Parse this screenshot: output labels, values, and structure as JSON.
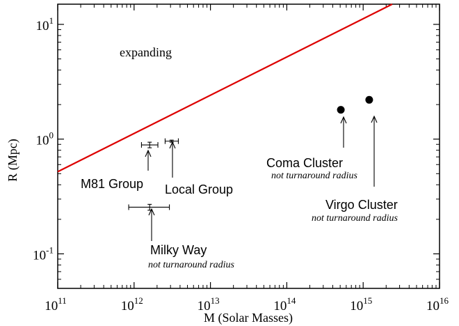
{
  "chart_data": {
    "type": "scatter",
    "xlabel": "M (Solar Masses)",
    "ylabel": "R (Mpc)",
    "x_scale": "log",
    "y_scale": "log",
    "xlim": [
      100000000000.0,
      1e+16
    ],
    "ylim": [
      0.05,
      15
    ],
    "x_ticks": [
      {
        "base": "10",
        "exp": "11"
      },
      {
        "base": "10",
        "exp": "12"
      },
      {
        "base": "10",
        "exp": "13"
      },
      {
        "base": "10",
        "exp": "14"
      },
      {
        "base": "10",
        "exp": "15"
      },
      {
        "base": "10",
        "exp": "16"
      }
    ],
    "y_ticks": [
      {
        "value": 0.1,
        "base": "10",
        "exp": "-1"
      },
      {
        "value": 1,
        "base": "10",
        "exp": "0"
      },
      {
        "value": 10,
        "base": "10",
        "exp": "1"
      }
    ],
    "grid": false,
    "line": {
      "color": "#dd0000",
      "points": [
        [
          100000000000.0,
          0.52
        ],
        [
          2400000000000000.0,
          15
        ]
      ]
    },
    "points": [
      {
        "label": "M81 Group",
        "x": 1600000000000.0,
        "y": 0.89,
        "x_err": [
          1250000000000.0,
          2050000000000.0
        ],
        "y_err": [
          0.84,
          0.94
        ],
        "marker": "errorbar"
      },
      {
        "label": "Local Group",
        "x": 3100000000000.0,
        "y": 0.96,
        "x_err": [
          2550000000000.0,
          3800000000000.0
        ],
        "y_err": [
          0.94,
          0.98
        ],
        "marker": "errorbar"
      },
      {
        "label": "Milky Way",
        "note": "not turnaround radius",
        "x": 1600000000000.0,
        "y": 0.255,
        "x_err": [
          850000000000.0,
          2900000000000.0
        ],
        "y_err": [
          0.24,
          0.27
        ],
        "marker": "errorbar"
      },
      {
        "label": "Coma Cluster",
        "note": "not turnaround radius",
        "x": 510000000000000.0,
        "y": 1.8,
        "marker": "dot"
      },
      {
        "label": "Virgo Cluster",
        "note": "not turnaround radius",
        "x": 1200000000000000.0,
        "y": 2.2,
        "marker": "dot"
      }
    ],
    "annotations": [
      {
        "text": "expanding"
      }
    ]
  }
}
